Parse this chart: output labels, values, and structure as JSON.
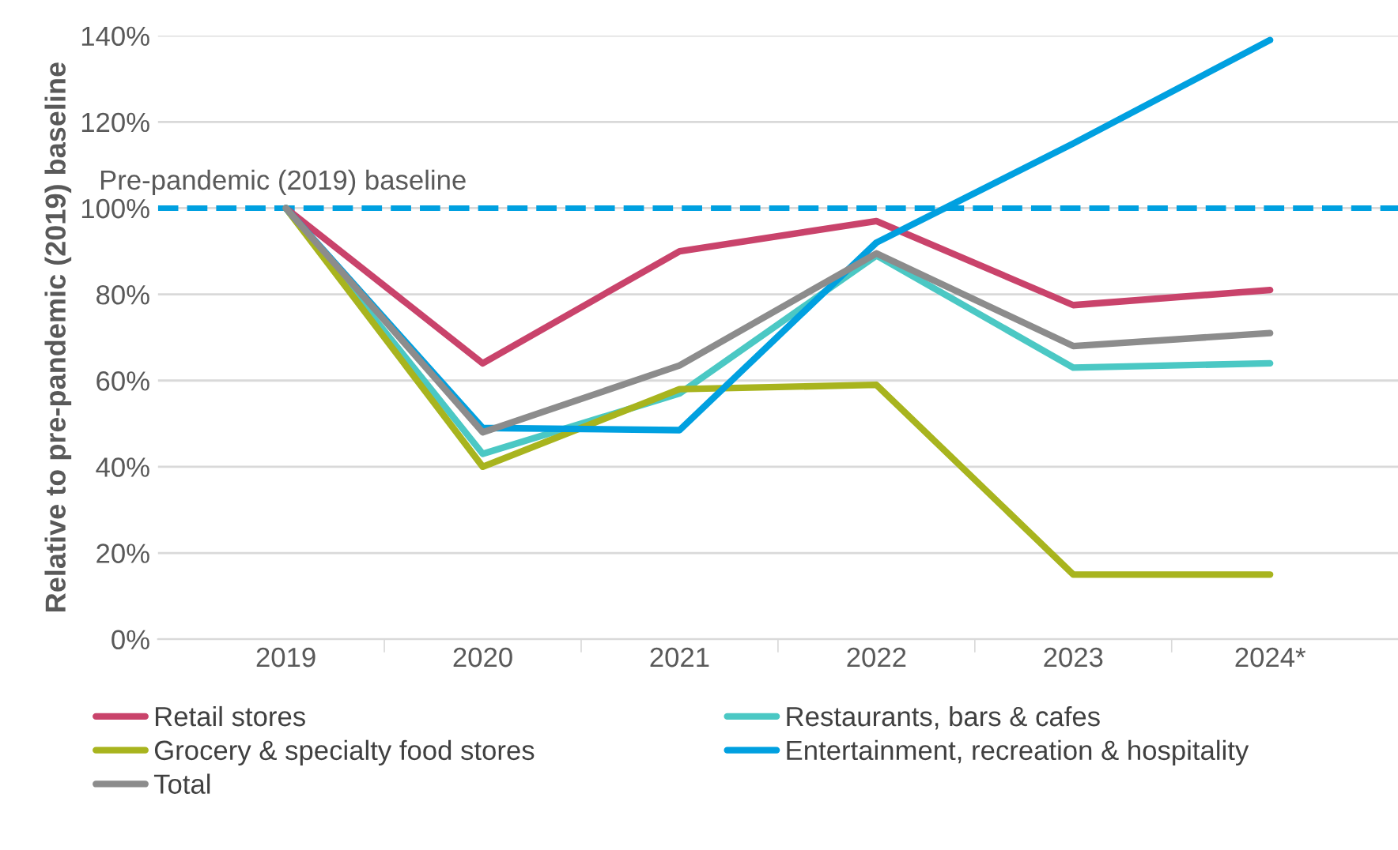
{
  "chart_data": {
    "type": "line",
    "ylabel": "Relative to pre-pandemic (2019) baseline",
    "categories": [
      "2019",
      "2020",
      "2021",
      "2022",
      "2023",
      "2024*"
    ],
    "series": [
      {
        "name": "Retail stores",
        "color": "#c9436b",
        "values": [
          100,
          64,
          90,
          97,
          77.5,
          81
        ]
      },
      {
        "name": "Restaurants, bars & cafes",
        "color": "#4bc8c4",
        "values": [
          100,
          43,
          57,
          89,
          63,
          64
        ]
      },
      {
        "name": "Grocery & specialty food stores",
        "color": "#a8b41e",
        "values": [
          100,
          40,
          58,
          59,
          15,
          15
        ]
      },
      {
        "name": "Entertainment, recreation & hospitality",
        "color": "#00a0e0",
        "values": [
          100,
          49,
          48.5,
          92,
          115,
          139
        ]
      },
      {
        "name": "Total",
        "color": "#8c8c8c",
        "values": [
          100,
          48,
          63.5,
          89.5,
          68,
          71
        ]
      }
    ],
    "ylim": [
      0,
      140
    ],
    "yticks": [
      {
        "value": 0,
        "label": "0%"
      },
      {
        "value": 20,
        "label": "20%"
      },
      {
        "value": 40,
        "label": "40%"
      },
      {
        "value": 60,
        "label": "60%"
      },
      {
        "value": 80,
        "label": "80%"
      },
      {
        "value": 100,
        "label": "100%"
      },
      {
        "value": 120,
        "label": "120%"
      },
      {
        "value": 140,
        "label": "140%"
      }
    ],
    "ref_lines": [
      {
        "axis": "y",
        "value": 100,
        "label": "Pre-pandemic (2019) baseline",
        "color": "#00a0e0",
        "line_style": "dashed"
      }
    ],
    "grid": "y",
    "legend": "bottom",
    "marker": "none",
    "line_style": "solid"
  }
}
